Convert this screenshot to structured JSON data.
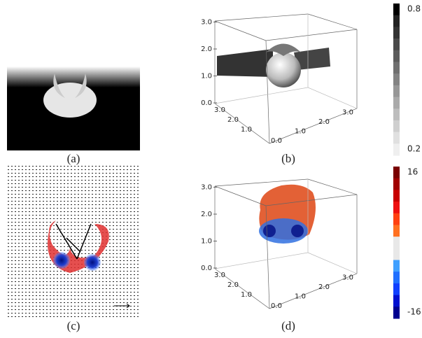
{
  "panels": [
    {
      "label": "(a)"
    },
    {
      "label": "(b)",
      "z_ticks": [
        "0.0",
        "1.0",
        "2.0",
        "3.0"
      ],
      "y_ticks": [
        "1.0",
        "2.0",
        "3.0"
      ],
      "x_ticks": [
        "0.0",
        "1.0",
        "2.0",
        "3.0"
      ]
    },
    {
      "label": "(c)"
    },
    {
      "label": "(d)",
      "z_ticks": [
        "0.0",
        "1.0",
        "2.0",
        "3.0"
      ],
      "y_ticks": [
        "1.0",
        "2.0",
        "3.0"
      ],
      "x_ticks": [
        "0.0",
        "1.0",
        "2.0",
        "3.0"
      ]
    }
  ],
  "colorbars": [
    {
      "max": "0.8",
      "min": "0.2"
    },
    {
      "max": "16",
      "min": "-16"
    }
  ]
}
